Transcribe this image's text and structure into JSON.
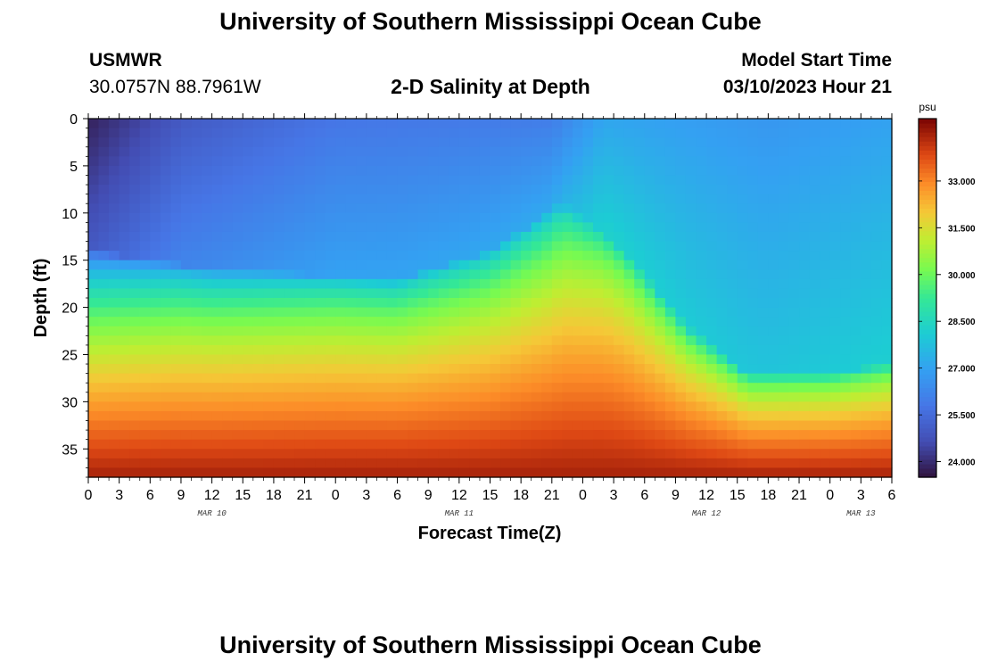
{
  "header": {
    "title": "University of Southern Mississippi Ocean Cube",
    "footer_title": "University of Southern Mississippi Ocean Cube",
    "station": "USMWR",
    "coordinates": "30.0757N  88.7961W",
    "plot_title": "2-D Salinity at Depth",
    "start_label": "Model Start Time",
    "start_value": "03/10/2023 Hour 21"
  },
  "chart_data": {
    "type": "heatmap",
    "title": "2-D Salinity at Depth",
    "xlabel": "Forecast Time(Z)",
    "ylabel": "Depth (ft)",
    "x_hours_range": [
      0,
      78
    ],
    "x_tick_hours": [
      0,
      3,
      6,
      9,
      12,
      15,
      18,
      21,
      24,
      27,
      30,
      33,
      36,
      39,
      42,
      45,
      48,
      51,
      54,
      57,
      60,
      63,
      66,
      69,
      72,
      75,
      78
    ],
    "x_tick_labels": [
      "0",
      "3",
      "6",
      "9",
      "12",
      "15",
      "18",
      "21",
      "0",
      "3",
      "6",
      "9",
      "12",
      "15",
      "18",
      "21",
      "0",
      "3",
      "6",
      "9",
      "12",
      "15",
      "18",
      "21",
      "0",
      "3",
      "6"
    ],
    "date_labels": [
      {
        "label": "MAR 10",
        "hour": 12
      },
      {
        "label": "MAR 11",
        "hour": 36
      },
      {
        "label": "MAR 12",
        "hour": 60
      },
      {
        "label": "MAR 13",
        "hour": 75
      }
    ],
    "y_ticks": [
      0,
      5,
      10,
      15,
      20,
      25,
      30,
      35
    ],
    "y_range": [
      0,
      38
    ],
    "colorbar": {
      "unit": "psu",
      "range": [
        23.5,
        35.0
      ],
      "ticks": [
        24.0,
        25.5,
        27.0,
        28.5,
        30.0,
        31.5,
        33.0
      ],
      "tick_labels": [
        "24.000",
        "25.500",
        "27.000",
        "28.500",
        "30.000",
        "31.500",
        "33.000"
      ]
    },
    "halocline_depth_by_hour": [
      {
        "hour": 0,
        "depth": 14
      },
      {
        "hour": 12,
        "depth": 16
      },
      {
        "hour": 30,
        "depth": 17
      },
      {
        "hour": 39,
        "depth": 14
      },
      {
        "hour": 46,
        "depth": 9
      },
      {
        "hour": 52,
        "depth": 14
      },
      {
        "hour": 58,
        "depth": 22
      },
      {
        "hour": 64,
        "depth": 27
      },
      {
        "hour": 72,
        "depth": 27
      },
      {
        "hour": 78,
        "depth": 26
      }
    ],
    "surface_salinity_by_hour": [
      {
        "hour": 0,
        "value": 23.8
      },
      {
        "hour": 9,
        "value": 25.0
      },
      {
        "hour": 24,
        "value": 25.8
      },
      {
        "hour": 45,
        "value": 26.0
      },
      {
        "hour": 50,
        "value": 27.1
      },
      {
        "hour": 66,
        "value": 26.7
      },
      {
        "hour": 78,
        "value": 27.0
      }
    ],
    "bottom_salinity": 34.5
  }
}
